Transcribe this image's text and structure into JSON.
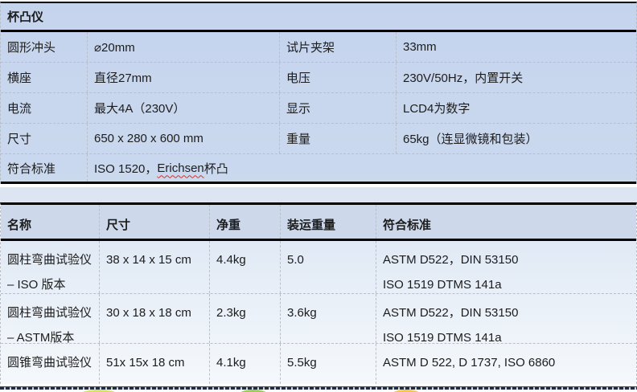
{
  "colors": {
    "table_blue": "#c8d6ee",
    "gap_blue": "#dee5f2",
    "header2_blue": "#cdd9eb",
    "row_fade_light": "#f5f8fc",
    "border_black": "#000000",
    "dashed_gray": "#b9bfc8",
    "squiggle_red": "#d93025",
    "blob_yellow_green": "#d9e06a",
    "blob_green": "#9ccb58",
    "blob_yellow": "#f4c64e"
  },
  "table1": {
    "title": "杯凸仪",
    "rows": [
      {
        "c1": "圆形冲头",
        "c2": "⌀20mm",
        "c3": "试片夹架",
        "c4": "33mm"
      },
      {
        "c1": "横座",
        "c2": "直径27mm",
        "c3": "电压",
        "c4": "230V/50Hz，内置开关"
      },
      {
        "c1": "电流",
        "c2": "最大4A（230V）",
        "c3": "显示",
        "c4": "LCD4为数字"
      },
      {
        "c1": "尺寸",
        "c2": "650 x 280 x 600 mm",
        "c3": "重量",
        "c4": "65kg（连显微镜和包装）"
      }
    ],
    "standards_row": {
      "label": "符合标准",
      "value_prefix": "ISO 1520， ",
      "value_misspelled": "Erichsen",
      "value_suffix": " 杯凸"
    }
  },
  "table2": {
    "headers": [
      "名称",
      "尺寸",
      "净重",
      "装运重量",
      "符合标准"
    ],
    "rows": [
      {
        "name1": "圆柱弯曲试验仪",
        "name2": "– ISO 版本",
        "size": "38 x 14 x 15 cm",
        "net": "4.4kg",
        "ship": "5.0",
        "std1": "ASTM D522，DIN 53150",
        "std2": "ISO 1519 DTMS 141a"
      },
      {
        "name1": "圆柱弯曲试验仪",
        "name2": "– ASTM版本",
        "size": "30 x 18 x 18 cm",
        "net": "2.3kg",
        "ship": "3.6kg",
        "std1": "ASTM D522，DIN 53150",
        "std2": "ISO 1519 DTMS 141a"
      },
      {
        "name1": "圆锥弯曲试验仪",
        "name2": "",
        "size": "51x 15x 18 cm",
        "net": "4.1kg",
        "ship": "5.5kg",
        "std1": "ASTM D 522, D 1737, ISO 6860",
        "std2": ""
      }
    ]
  }
}
